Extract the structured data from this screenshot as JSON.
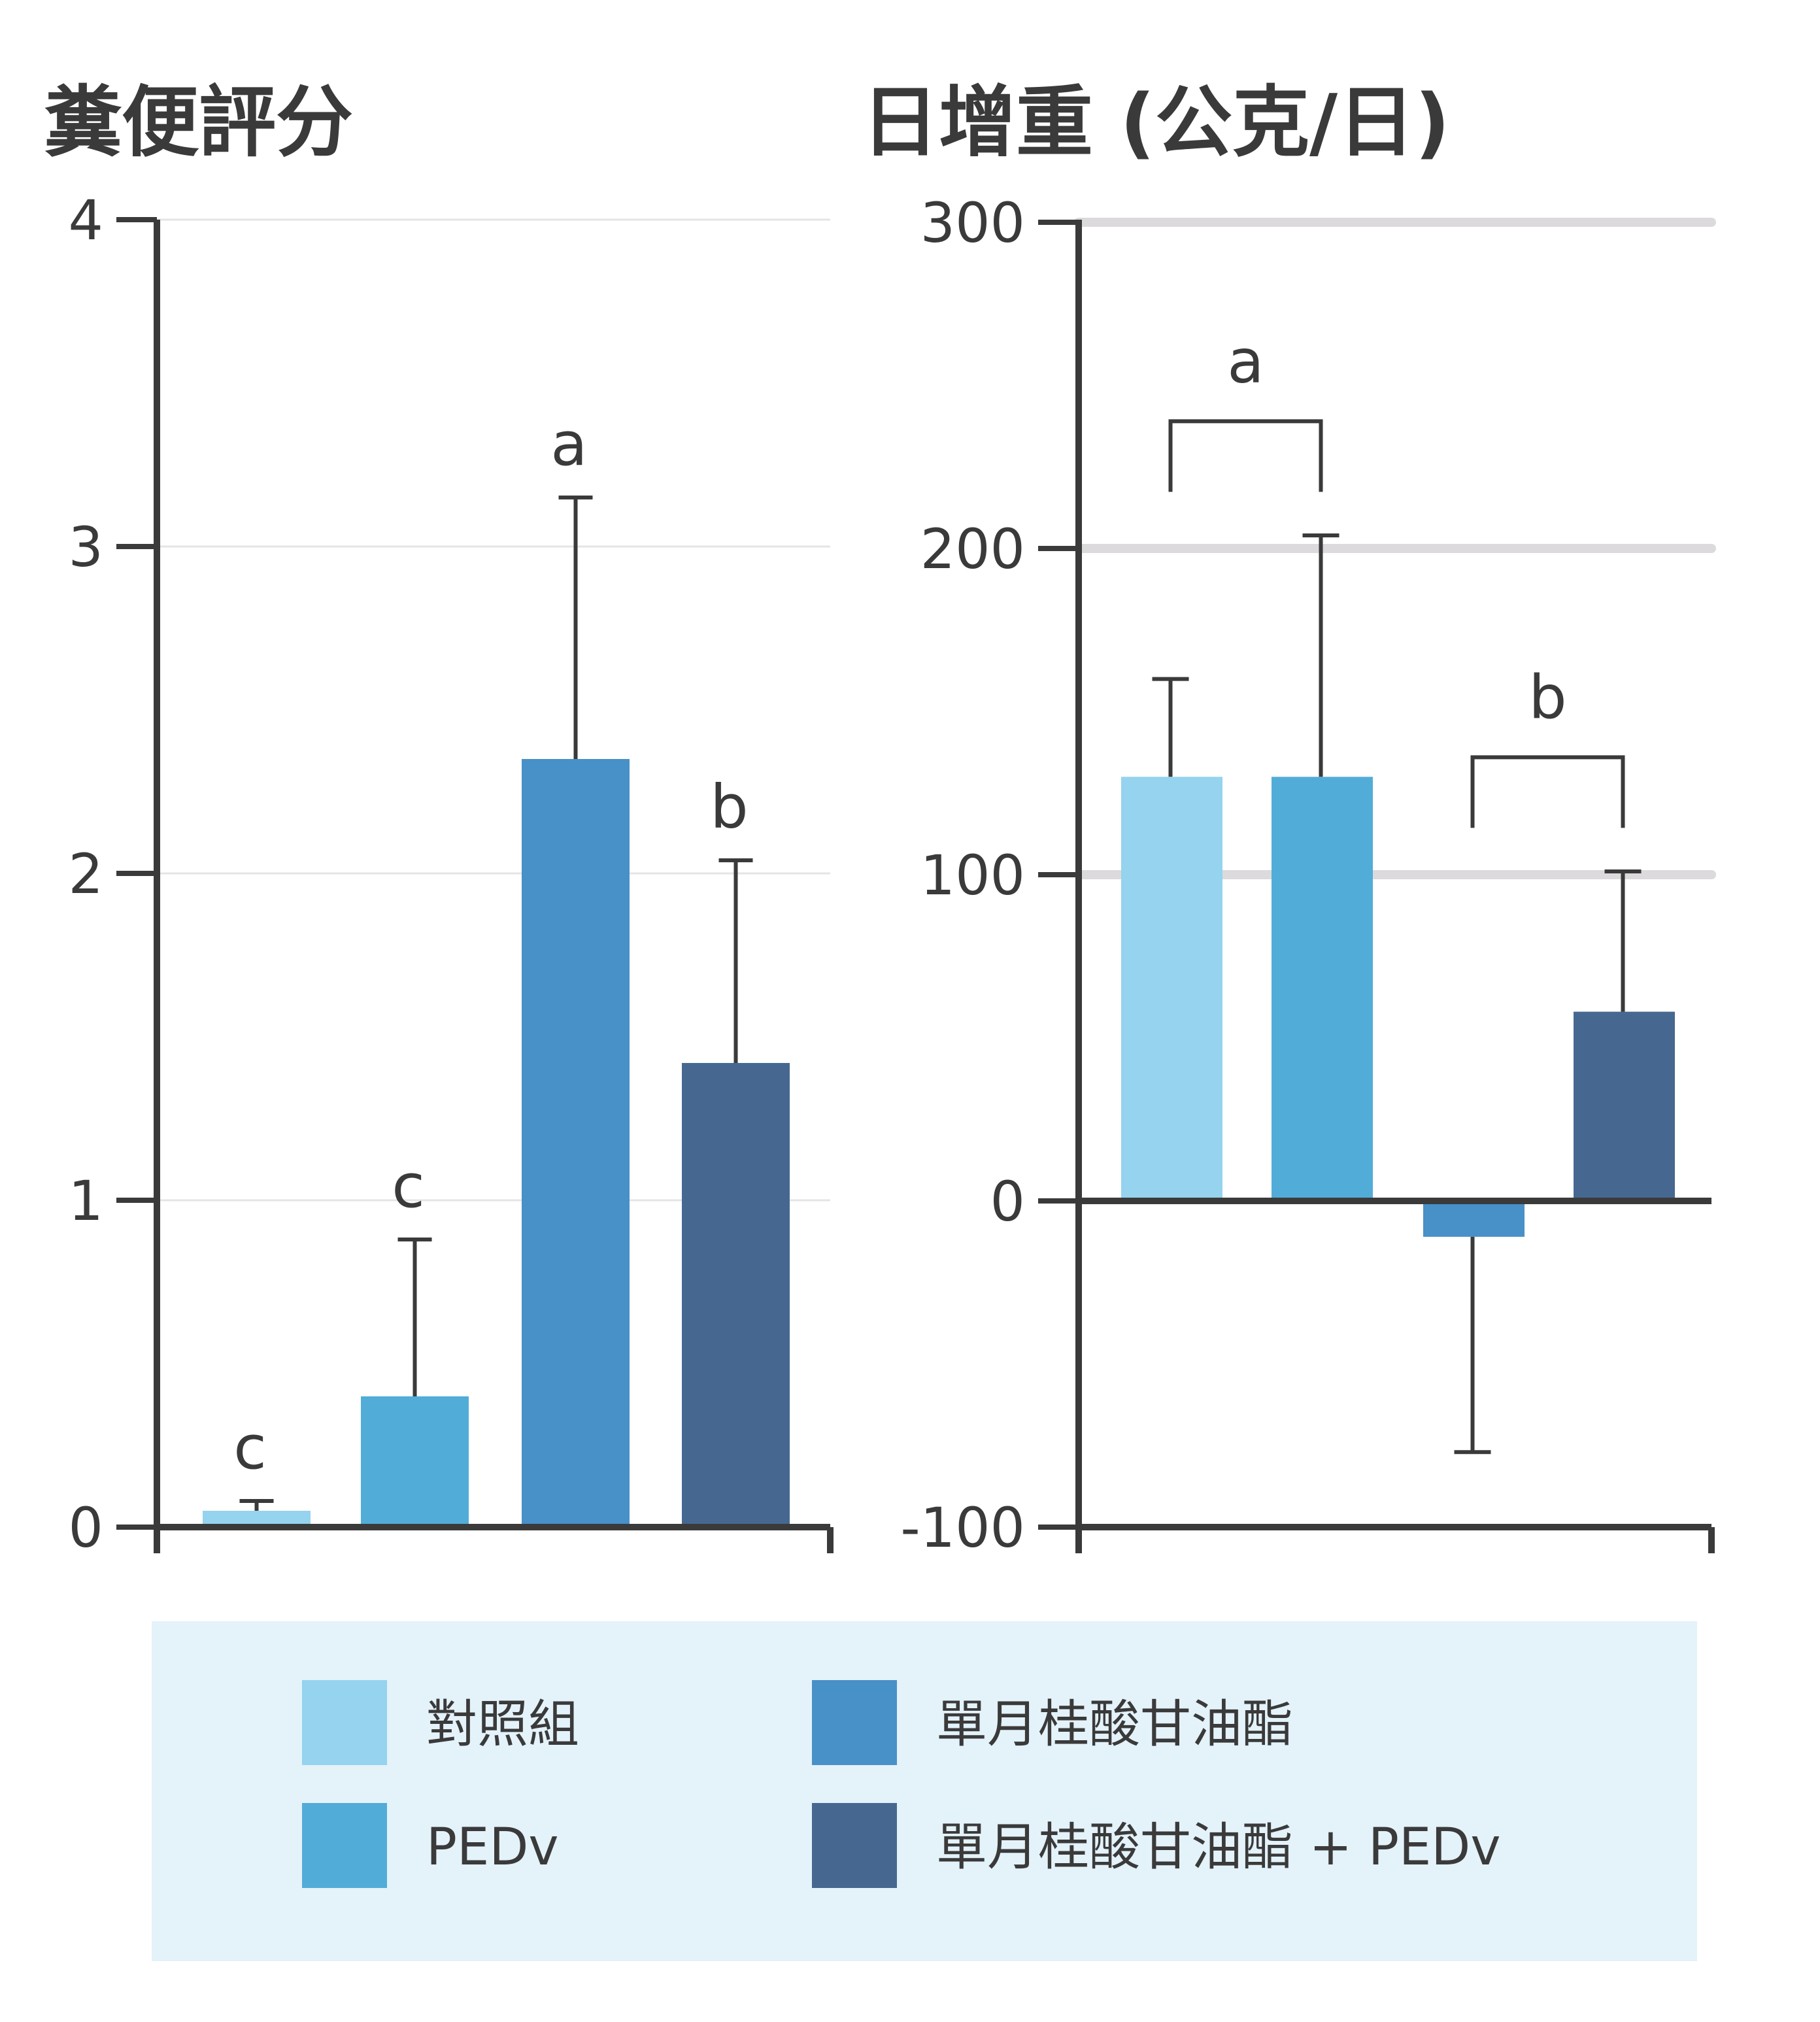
{
  "colors": {
    "control": "#95d3ee",
    "pedv": "#52acd8",
    "gml": "#4890c8",
    "gml_pedv": "#466890",
    "axis": "#3a3a3a",
    "legend_bg": "#e4f2fa"
  },
  "chart_data": [
    {
      "type": "bar",
      "title": "糞便評分",
      "categories": [
        "對照組",
        "PEDv",
        "單月桂酸甘油酯",
        "單月桂酸甘油酯 + PEDv"
      ],
      "values": [
        0.05,
        0.4,
        2.35,
        1.42
      ],
      "error_upper": [
        0.08,
        0.88,
        3.15,
        2.04
      ],
      "letters": [
        "c",
        "c",
        "a",
        "b"
      ],
      "ylim": [
        0,
        4
      ],
      "yticks": [
        "0",
        "1",
        "2",
        "3",
        "4"
      ],
      "grid": true
    },
    {
      "type": "bar",
      "title": "日增重 (公克/日)",
      "categories": [
        "對照組",
        "PEDv",
        "單月桂酸甘油酯",
        "單月桂酸甘油酯 + PEDv"
      ],
      "values": [
        130,
        130,
        -11,
        58
      ],
      "error_bounds": [
        160,
        204,
        -77,
        101
      ],
      "group_letters": [
        {
          "label": "a",
          "bars": [
            0,
            1
          ]
        },
        {
          "label": "b",
          "bars": [
            2,
            3
          ]
        }
      ],
      "ylim": [
        -100,
        300
      ],
      "yticks": [
        "-100",
        "0",
        "100",
        "200",
        "300"
      ],
      "grid": true
    }
  ],
  "legend": {
    "items": [
      {
        "label": "對照組",
        "color_key": "control"
      },
      {
        "label": "單月桂酸甘油酯",
        "color_key": "gml"
      },
      {
        "label": "PEDv",
        "color_key": "pedv"
      },
      {
        "label": "單月桂酸甘油酯 + PEDv",
        "color_key": "gml_pedv"
      }
    ]
  }
}
